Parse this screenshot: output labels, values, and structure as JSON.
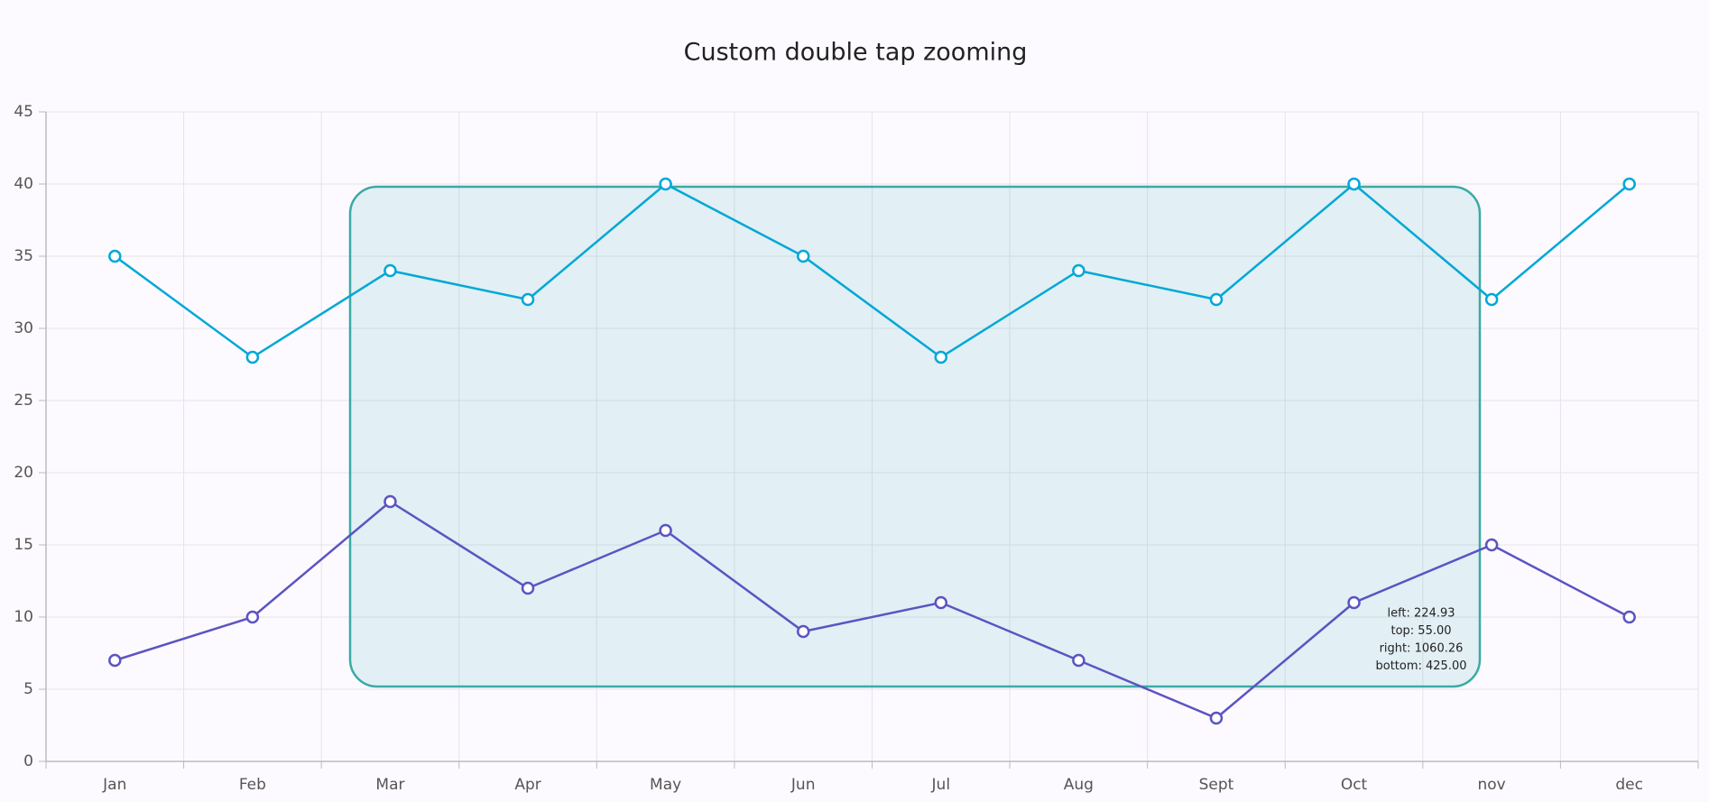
{
  "chart_data": {
    "type": "line",
    "title": "Custom double tap zooming",
    "categories": [
      "Jan",
      "Feb",
      "Mar",
      "Apr",
      "May",
      "Jun",
      "Jul",
      "Aug",
      "Sept",
      "Oct",
      "nov",
      "dec"
    ],
    "series": [
      {
        "color": "#00a8d6",
        "values": [
          35,
          28,
          34,
          32,
          40,
          35,
          28,
          34,
          32,
          40,
          32,
          40
        ]
      },
      {
        "color": "#5b54c2",
        "values": [
          7,
          10,
          18,
          12,
          16,
          9,
          11,
          7,
          3,
          11,
          15,
          10
        ]
      }
    ],
    "ylim": [
      0,
      45
    ],
    "yticks": [
      0,
      5,
      10,
      15,
      20,
      25,
      30,
      35,
      40,
      45
    ],
    "grid": true,
    "selection": {
      "labels": [
        "left: 224.93",
        "top: 55.00",
        "right: 1060.26",
        "bottom: 425.00"
      ]
    }
  }
}
